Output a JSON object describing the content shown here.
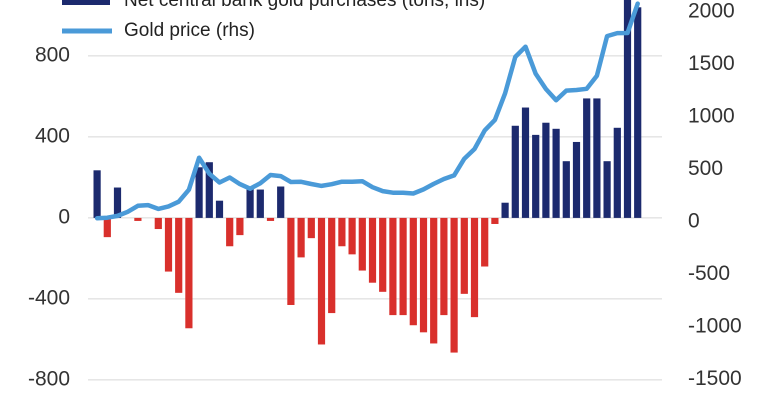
{
  "chart_data": {
    "type": "bar-line",
    "series": [
      {
        "name": "Net central bank gold purchases (tons, lhs)",
        "type": "bar",
        "color": "#1c2a6e",
        "negative_color": "#d9302c",
        "values": [
          235,
          -95,
          150,
          0,
          -15,
          0,
          -55,
          -265,
          -370,
          -545,
          250,
          275,
          85,
          -140,
          -85,
          145,
          140,
          -15,
          155,
          -430,
          -195,
          -100,
          -625,
          -470,
          -140,
          -180,
          -260,
          -320,
          -365,
          -480,
          -480,
          -530,
          -565,
          -620,
          -480,
          -665,
          -375,
          -490,
          -240,
          -30,
          75,
          455,
          545,
          410,
          470,
          440,
          280,
          375,
          590,
          590,
          280,
          445,
          1080,
          1040
        ]
      },
      {
        "name": "Gold price (rhs)",
        "type": "line",
        "axis": "y2",
        "color": "#4a9ad8",
        "values": [
          36,
          41,
          58,
          97,
          154,
          161,
          125,
          148,
          193,
          307,
          612,
          460,
          376,
          424,
          361,
          317,
          368,
          447,
          437,
          381,
          383,
          362,
          344,
          360,
          384,
          384,
          388,
          331,
          294,
          279,
          279,
          271,
          310,
          363,
          409,
          444,
          603,
          695,
          872,
          972,
          1225,
          1572,
          1669,
          1411,
          1266,
          1160,
          1251,
          1257,
          1268,
          1393,
          1770,
          1799,
          1800,
          2080
        ]
      }
    ],
    "ylim": [
      -914,
      1076
    ],
    "yticks": [
      -800,
      -400,
      0,
      400,
      800
    ],
    "y2lim": [
      -1724,
      2114
    ],
    "y2ticks": [
      -1500,
      -1000,
      -500,
      0,
      500,
      1000,
      1500,
      2000
    ],
    "grid": true
  }
}
